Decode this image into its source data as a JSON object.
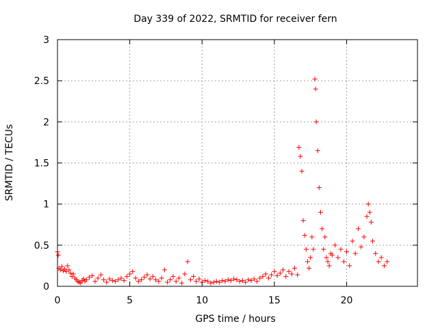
{
  "chart_data": {
    "type": "scatter",
    "title": "Day 339 of 2022, SRMTID for receiver fern",
    "xlabel": "GPS time / hours",
    "ylabel": "SRMTID / TECUs",
    "xlim": [
      0,
      24.9
    ],
    "ylim": [
      0,
      3
    ],
    "xticks": [
      0,
      5,
      10,
      15,
      20
    ],
    "xtick_labels": [
      "0",
      "5",
      "10",
      "15",
      "20"
    ],
    "yticks": [
      0,
      0.5,
      1,
      1.5,
      2,
      2.5,
      3
    ],
    "ytick_labels": [
      "0",
      "0.5",
      "1",
      "1.5",
      "2",
      "2.5",
      "3"
    ],
    "grid": true,
    "marker": "+",
    "series": [
      {
        "name": "SRMTID",
        "color": "#ff0000",
        "x": [
          0.0,
          0.05,
          0.1,
          0.2,
          0.3,
          0.4,
          0.5,
          0.6,
          0.7,
          0.8,
          0.9,
          1.0,
          1.1,
          1.2,
          1.3,
          1.4,
          1.5,
          1.6,
          1.7,
          1.8,
          1.9,
          2.0,
          2.2,
          2.4,
          2.6,
          2.8,
          3.0,
          3.2,
          3.4,
          3.6,
          3.8,
          4.0,
          4.2,
          4.4,
          4.6,
          4.8,
          5.0,
          5.2,
          5.4,
          5.6,
          5.8,
          6.0,
          6.2,
          6.4,
          6.6,
          6.8,
          7.0,
          7.2,
          7.4,
          7.6,
          7.8,
          8.0,
          8.2,
          8.4,
          8.6,
          8.8,
          9.0,
          9.2,
          9.4,
          9.6,
          9.8,
          10.0,
          10.2,
          10.4,
          10.6,
          10.8,
          11.0,
          11.2,
          11.4,
          11.6,
          11.8,
          12.0,
          12.2,
          12.4,
          12.6,
          12.8,
          13.0,
          13.2,
          13.4,
          13.6,
          13.8,
          14.0,
          14.2,
          14.4,
          14.6,
          14.8,
          15.0,
          15.2,
          15.4,
          15.6,
          15.8,
          16.0,
          16.2,
          16.4,
          16.6,
          16.7,
          16.8,
          16.9,
          17.0,
          17.1,
          17.2,
          17.3,
          17.4,
          17.5,
          17.6,
          17.7,
          17.8,
          17.85,
          17.9,
          18.0,
          18.1,
          18.2,
          18.3,
          18.4,
          18.5,
          18.6,
          18.7,
          18.8,
          18.9,
          19.0,
          19.2,
          19.4,
          19.6,
          19.8,
          20.0,
          20.2,
          20.4,
          20.6,
          20.8,
          21.0,
          21.2,
          21.4,
          21.5,
          21.6,
          21.7,
          21.8,
          22.0,
          22.2,
          22.4,
          22.6,
          22.8
        ],
        "y": [
          0.42,
          0.38,
          0.22,
          0.2,
          0.24,
          0.19,
          0.21,
          0.18,
          0.25,
          0.2,
          0.16,
          0.12,
          0.15,
          0.1,
          0.08,
          0.06,
          0.05,
          0.04,
          0.07,
          0.09,
          0.06,
          0.08,
          0.11,
          0.13,
          0.06,
          0.1,
          0.14,
          0.08,
          0.05,
          0.09,
          0.07,
          0.06,
          0.08,
          0.1,
          0.07,
          0.12,
          0.15,
          0.18,
          0.1,
          0.06,
          0.08,
          0.11,
          0.14,
          0.09,
          0.12,
          0.08,
          0.06,
          0.1,
          0.2,
          0.05,
          0.08,
          0.12,
          0.06,
          0.1,
          0.04,
          0.15,
          0.3,
          0.08,
          0.12,
          0.06,
          0.09,
          0.05,
          0.07,
          0.06,
          0.04,
          0.05,
          0.06,
          0.05,
          0.07,
          0.06,
          0.08,
          0.07,
          0.09,
          0.08,
          0.06,
          0.07,
          0.05,
          0.08,
          0.07,
          0.09,
          0.06,
          0.1,
          0.12,
          0.15,
          0.1,
          0.14,
          0.18,
          0.13,
          0.16,
          0.2,
          0.12,
          0.18,
          0.15,
          0.22,
          0.14,
          1.69,
          1.58,
          1.4,
          0.8,
          0.62,
          0.45,
          0.3,
          0.22,
          0.35,
          0.6,
          0.45,
          2.52,
          2.4,
          2.0,
          1.65,
          1.2,
          0.9,
          0.7,
          0.45,
          0.6,
          0.35,
          0.3,
          0.25,
          0.4,
          0.38,
          0.5,
          0.35,
          0.45,
          0.3,
          0.42,
          0.25,
          0.55,
          0.4,
          0.7,
          0.48,
          0.6,
          0.85,
          1.0,
          0.9,
          0.78,
          0.55,
          0.4,
          0.3,
          0.35,
          0.25,
          0.3
        ]
      }
    ]
  }
}
